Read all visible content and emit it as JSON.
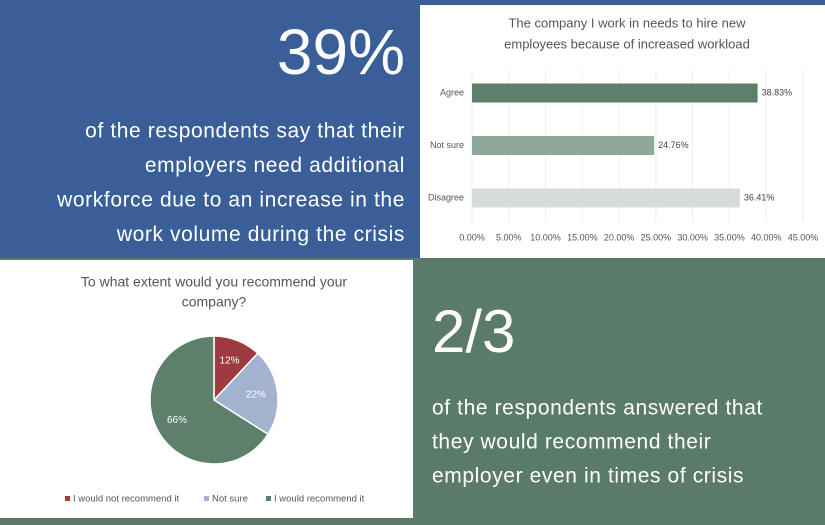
{
  "panels": {
    "top_left": {
      "headline": "39%",
      "lines": [
        "of the respondents say that their",
        "employers need additional",
        "workforce due to an increase in the",
        "work volume during the crisis"
      ]
    },
    "bottom_right": {
      "headline": "2/3",
      "lines": [
        "of the respondents answered that",
        "they would recommend their",
        "employer even in times of crisis"
      ]
    }
  },
  "chart_data": [
    {
      "type": "hbar",
      "title": [
        "The company I work in needs to hire new",
        "employees because of increased workload"
      ],
      "categories": [
        "Agree",
        "Not sure",
        "Disagree"
      ],
      "values": [
        38.83,
        24.76,
        36.41
      ],
      "value_labels": [
        "38.83%",
        "24.76%",
        "36.41%"
      ],
      "colors": [
        "#5e7f6a",
        "#8fa89a",
        "#d6ddd9"
      ],
      "xlim": [
        0,
        45
      ],
      "xticks": [
        {
          "value": 0,
          "label": "0.00%"
        },
        {
          "value": 5,
          "label": "5.00%"
        },
        {
          "value": 10,
          "label": "10.00%"
        },
        {
          "value": 15,
          "label": "15.00%"
        },
        {
          "value": 20,
          "label": "20.00%"
        },
        {
          "value": 25,
          "label": "25.00%"
        },
        {
          "value": 30,
          "label": "30.00%"
        },
        {
          "value": 35,
          "label": "35.00%"
        },
        {
          "value": 40,
          "label": "40.00%"
        },
        {
          "value": 45,
          "label": "45.00%"
        }
      ],
      "grid": true
    },
    {
      "type": "pie",
      "title": [
        "To what extent would you recommend your",
        "company?"
      ],
      "categories": [
        "I would not recommend it",
        "Not sure",
        "I would recommend it"
      ],
      "values": [
        12,
        22,
        66
      ],
      "value_labels": [
        "12%",
        "22%",
        "66%"
      ],
      "colors": [
        "#9e3a40",
        "#a3b3cf",
        "#5e7f6a"
      ]
    }
  ]
}
